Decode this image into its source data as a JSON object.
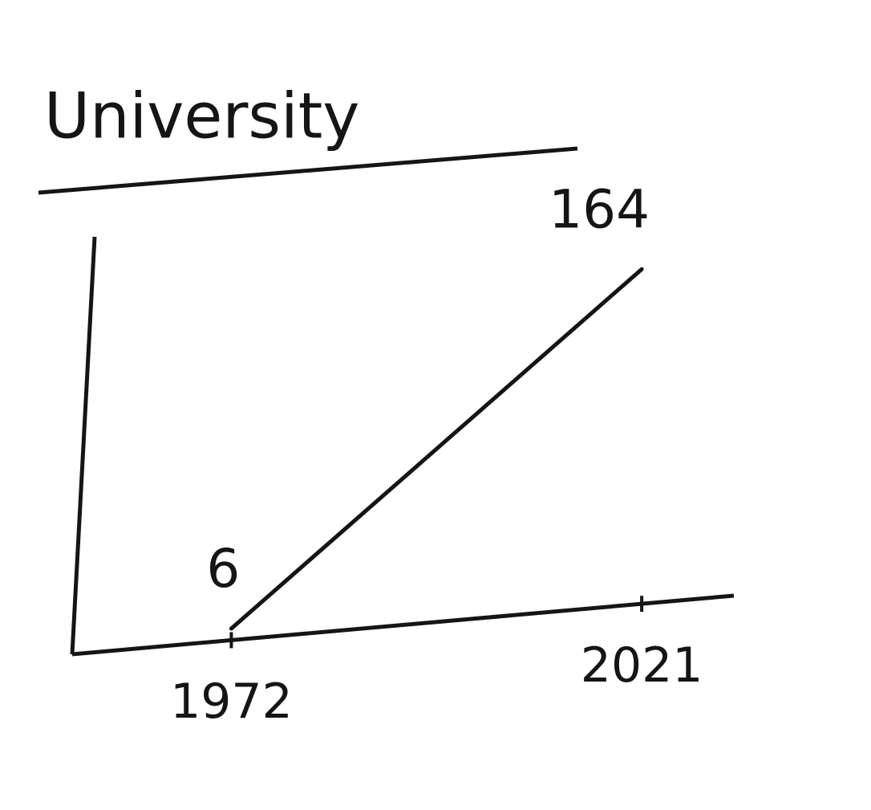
{
  "chart_data": {
    "type": "line",
    "title": "University",
    "x": [
      1972,
      2021
    ],
    "values": [
      6,
      164
    ],
    "color": "#151515",
    "xlim": [
      1953,
      2032
    ],
    "xticks": [
      1972,
      2021
    ],
    "ylim": [
      0,
      180
    ],
    "grid": false
  }
}
